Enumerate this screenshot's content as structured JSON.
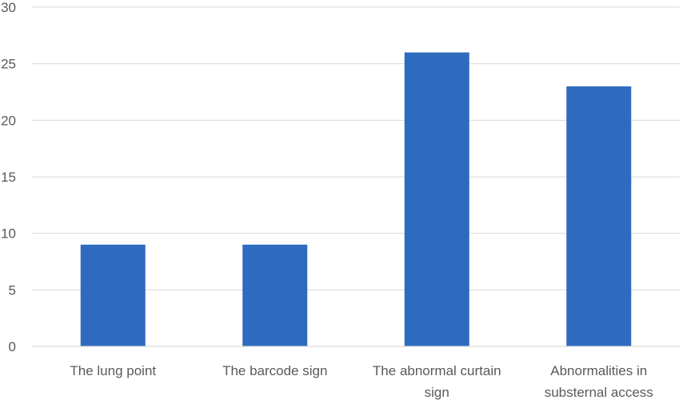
{
  "chart_data": {
    "type": "bar",
    "categories": [
      [
        "The lung point"
      ],
      [
        "The barcode sign"
      ],
      [
        "The abnormal curtain",
        "sign"
      ],
      [
        "Abnormalities in",
        "substernal access"
      ]
    ],
    "values": [
      9,
      9,
      26,
      23
    ],
    "ylim": [
      0,
      30
    ],
    "yticks": [
      0,
      5,
      10,
      15,
      20,
      25,
      30
    ],
    "grid": true,
    "bar_color": "#2e6bbf"
  }
}
